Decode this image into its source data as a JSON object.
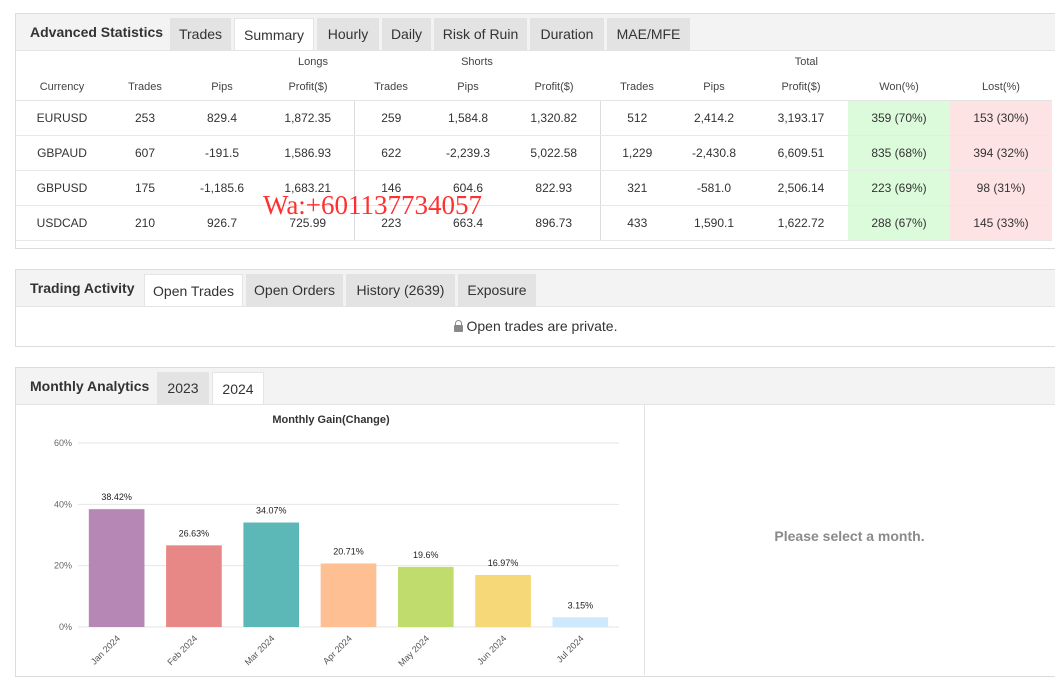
{
  "advanced": {
    "title": "Advanced Statistics",
    "tabs": [
      "Trades",
      "Summary",
      "Hourly",
      "Daily",
      "Risk of Ruin",
      "Duration",
      "MAE/MFE"
    ],
    "active_tab": "Summary",
    "groups": {
      "longs": "Longs",
      "shorts": "Shorts",
      "total": "Total"
    },
    "columns": [
      "Currency",
      "Trades",
      "Pips",
      "Profit($)",
      "Trades",
      "Pips",
      "Profit($)",
      "Trades",
      "Pips",
      "Profit($)",
      "Won(%)",
      "Lost(%)"
    ],
    "rows": [
      [
        "EURUSD",
        "253",
        "829.4",
        "1,872.35",
        "259",
        "1,584.8",
        "1,320.82",
        "512",
        "2,414.2",
        "3,193.17",
        "359 (70%)",
        "153 (30%)"
      ],
      [
        "GBPAUD",
        "607",
        "-191.5",
        "1,586.93",
        "622",
        "-2,239.3",
        "5,022.58",
        "1,229",
        "-2,430.8",
        "6,609.51",
        "835 (68%)",
        "394 (32%)"
      ],
      [
        "GBPUSD",
        "175",
        "-1,185.6",
        "1,683.21",
        "146",
        "604.6",
        "822.93",
        "321",
        "-581.0",
        "2,506.14",
        "223 (69%)",
        "98 (31%)"
      ],
      [
        "USDCAD",
        "210",
        "926.7",
        "725.99",
        "223",
        "663.4",
        "896.73",
        "433",
        "1,590.1",
        "1,622.72",
        "288 (67%)",
        "145 (33%)"
      ]
    ]
  },
  "watermark": "Wa:+601137734057",
  "activity": {
    "title": "Trading Activity",
    "tabs": [
      "Open Trades",
      "Open Orders",
      "History (2639)",
      "Exposure"
    ],
    "active_tab": "Open Trades",
    "private_text": "Open trades are private."
  },
  "monthly": {
    "title": "Monthly Analytics",
    "tabs": [
      "2023",
      "2024"
    ],
    "active_tab": "2024",
    "select_msg": "Please select a month."
  },
  "chart_data": {
    "type": "bar",
    "title": "Monthly Gain(Change)",
    "categories": [
      "Jan 2024",
      "Feb 2024",
      "Mar 2024",
      "Apr 2024",
      "May 2024",
      "Jun 2024",
      "Jul 2024"
    ],
    "values": [
      38.42,
      26.63,
      34.07,
      20.71,
      19.6,
      16.97,
      3.15
    ],
    "value_labels": [
      "38.42%",
      "26.63%",
      "34.07%",
      "20.71%",
      "19.6%",
      "16.97%",
      "3.15%"
    ],
    "colors": [
      "#b686b5",
      "#e88886",
      "#5cb8b6",
      "#febf92",
      "#bfdc6d",
      "#f6d878",
      "#cde9fb"
    ],
    "yticks": [
      "0%",
      "20%",
      "40%",
      "60%"
    ],
    "ylim": [
      0,
      60
    ],
    "grid": true,
    "xlabel": "",
    "ylabel": ""
  }
}
